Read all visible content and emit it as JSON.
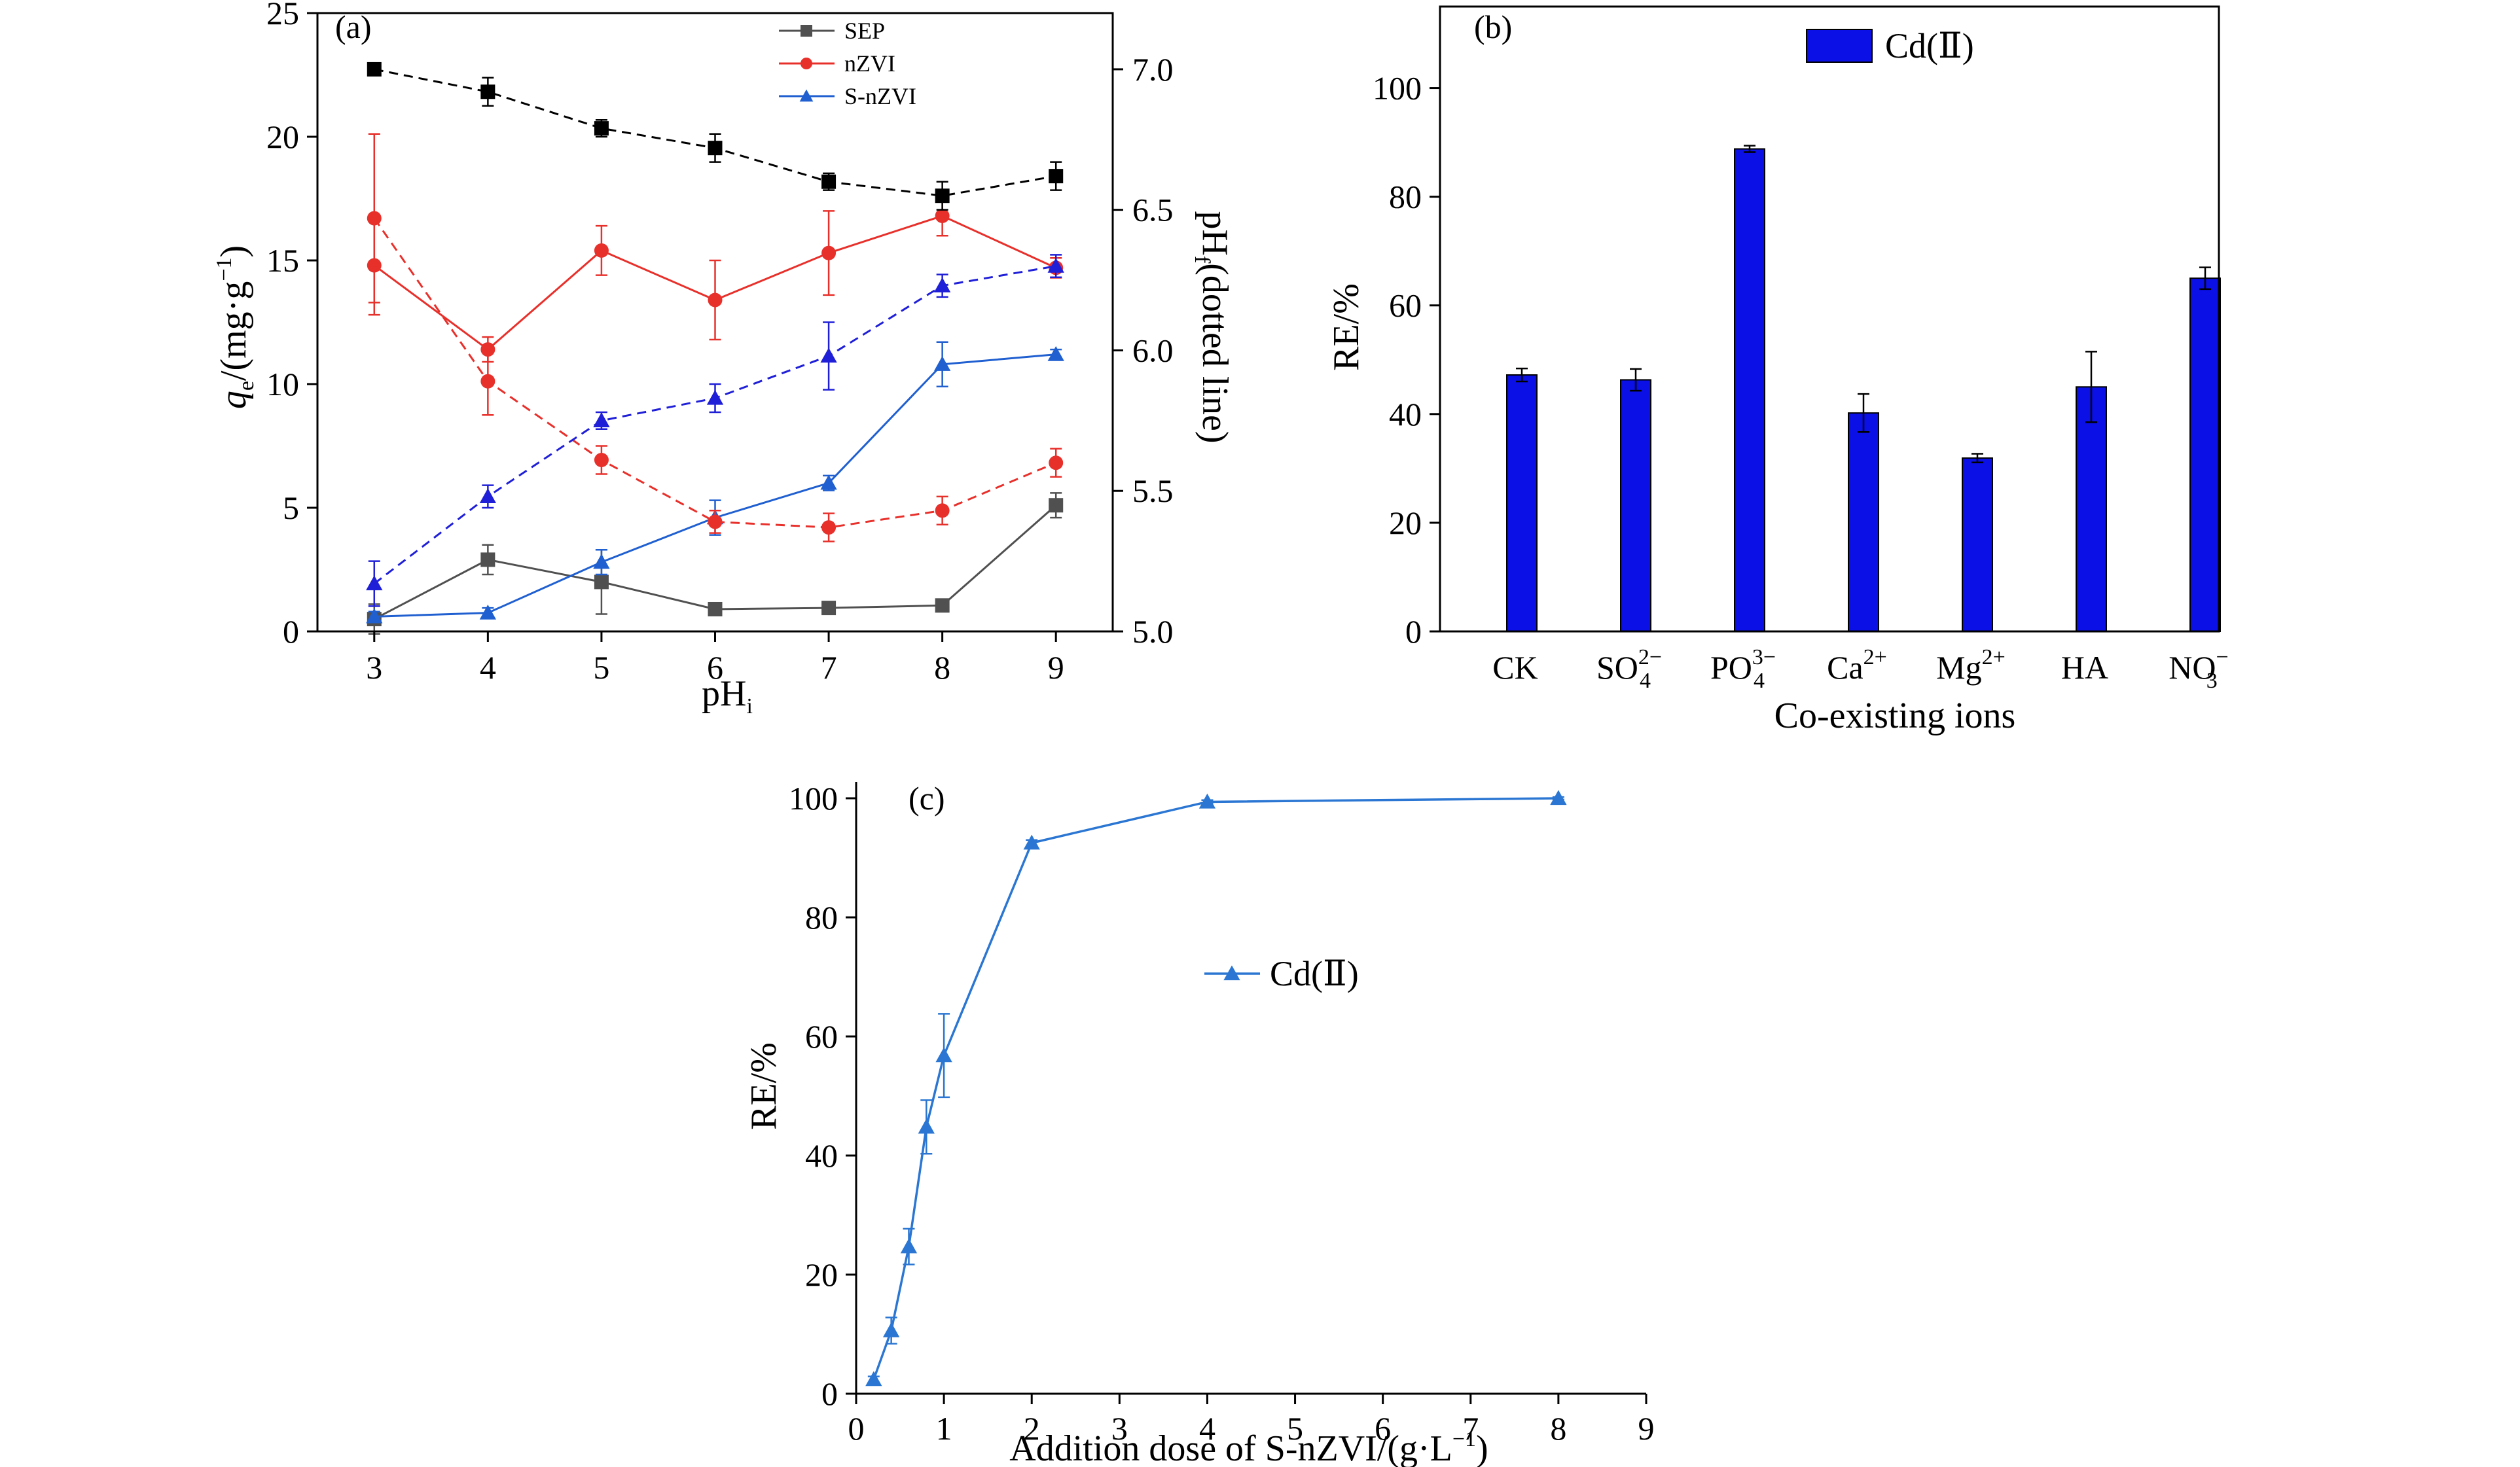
{
  "chart_data": [
    {
      "panel_label": "(a)",
      "type": "line",
      "xlabel": {
        "main": "pH",
        "sub": "i"
      },
      "ylabel_left": {
        "main": "q",
        "sub": "e",
        "rest": "/(mg·g",
        "sup": "−1",
        "close": ")"
      },
      "ylabel_right": {
        "main": "pH",
        "sub": "f",
        "rest": "(dotted line)"
      },
      "x": [
        3,
        4,
        5,
        6,
        7,
        8,
        9
      ],
      "xlim": [
        2.5,
        9.5
      ],
      "ylim_left": [
        0,
        25
      ],
      "ylim_right": [
        5.0,
        7.2
      ],
      "yticks_left": [
        0,
        5,
        10,
        15,
        20,
        25
      ],
      "yticks_right": [
        "5.0",
        "5.5",
        "6.0",
        "6.5",
        "7.0"
      ],
      "legend_position": "top-center",
      "series": [
        {
          "name": "SEP",
          "color": "#505050",
          "marker": "square",
          "axis": "left",
          "style": "solid",
          "values": [
            0.5,
            2.9,
            2.0,
            0.9,
            0.95,
            1.05,
            5.1
          ],
          "errors": [
            0.6,
            0.6,
            1.3,
            0.2,
            0.2,
            0.2,
            0.5
          ]
        },
        {
          "name": "nZVI",
          "color": "#e8302b",
          "marker": "circle",
          "axis": "left",
          "style": "solid",
          "values": [
            14.8,
            11.4,
            15.4,
            13.4,
            15.3,
            16.8,
            14.7
          ],
          "errors": [
            2.0,
            0.5,
            1.0,
            1.6,
            1.7,
            0.8,
            0.4
          ]
        },
        {
          "name": "S-nZVI",
          "color": "#1f5fd0",
          "marker": "triangle",
          "axis": "left",
          "style": "solid",
          "values": [
            0.6,
            0.75,
            2.8,
            4.6,
            6.0,
            10.8,
            11.2
          ],
          "errors": [
            0.2,
            0.2,
            0.5,
            0.7,
            0.3,
            0.9,
            0.2
          ]
        },
        {
          "color": "#000000",
          "marker": "square",
          "axis": "right",
          "style": "dashed",
          "values": [
            7.0,
            6.92,
            6.79,
            6.72,
            6.6,
            6.55,
            6.62
          ],
          "errors": [
            0.02,
            0.05,
            0.03,
            0.05,
            0.03,
            0.05,
            0.05
          ]
        },
        {
          "color": "#e8302b",
          "marker": "circle",
          "axis": "right",
          "style": "dashed",
          "values": [
            6.47,
            5.89,
            5.61,
            5.39,
            5.37,
            5.43,
            5.6
          ],
          "errors": [
            0.3,
            0.12,
            0.05,
            0.04,
            0.05,
            0.05,
            0.05
          ]
        },
        {
          "color": "#1f1fd8",
          "marker": "triangle",
          "axis": "right",
          "style": "dashed",
          "values": [
            5.17,
            5.48,
            5.75,
            5.83,
            5.98,
            6.23,
            6.3
          ],
          "errors": [
            0.08,
            0.04,
            0.03,
            0.05,
            0.12,
            0.04,
            0.04
          ]
        }
      ]
    },
    {
      "panel_label": "(b)",
      "type": "bar",
      "xlabel": "Co-existing ions",
      "ylabel": "RE/%",
      "ylim": [
        0,
        115
      ],
      "yticks": [
        0,
        20,
        40,
        60,
        80,
        100
      ],
      "categories": [
        {
          "base": "CK"
        },
        {
          "base": "SO",
          "sub": "4",
          "sup": "2−"
        },
        {
          "base": "PO",
          "sub": "4",
          "sup": "3−"
        },
        {
          "base": "Ca",
          "sup": "2+"
        },
        {
          "base": "Mg",
          "sup": "2+"
        },
        {
          "base": "HA"
        },
        {
          "base": "NO",
          "sub": "3",
          "sup": "−"
        }
      ],
      "series": [
        {
          "name": "Cd(Ⅱ)",
          "color": "#0a10e6",
          "values": [
            47.2,
            46.3,
            88.8,
            40.2,
            31.9,
            45.0,
            65.0
          ],
          "errors": [
            1.2,
            2.0,
            0.6,
            3.5,
            0.8,
            6.5,
            2.0
          ]
        }
      ],
      "legend_position": "top-center"
    },
    {
      "panel_label": "(c)",
      "type": "line",
      "xlabel": {
        "main": "Addition dose of S-nZVI/(g·L",
        "sup": "−1",
        "close": ")"
      },
      "ylabel": "RE/%",
      "xlim": [
        0,
        9
      ],
      "ylim": [
        0,
        100
      ],
      "xticks": [
        0,
        1,
        2,
        3,
        4,
        5,
        6,
        7,
        8,
        9
      ],
      "yticks": [
        0,
        20,
        40,
        60,
        80,
        100
      ],
      "legend_position": "center",
      "series": [
        {
          "name": "Cd(Ⅱ)",
          "color": "#2a76d2",
          "marker": "triangle",
          "x": [
            0.2,
            0.4,
            0.6,
            0.8,
            1.0,
            2.0,
            4.0,
            8.0
          ],
          "values": [
            2.4,
            10.6,
            24.7,
            44.8,
            56.8,
            92.5,
            99.4,
            100.0
          ],
          "errors": [
            0.5,
            2.2,
            3.0,
            4.5,
            7.0,
            0.5,
            0.3,
            0.2
          ]
        }
      ]
    }
  ]
}
